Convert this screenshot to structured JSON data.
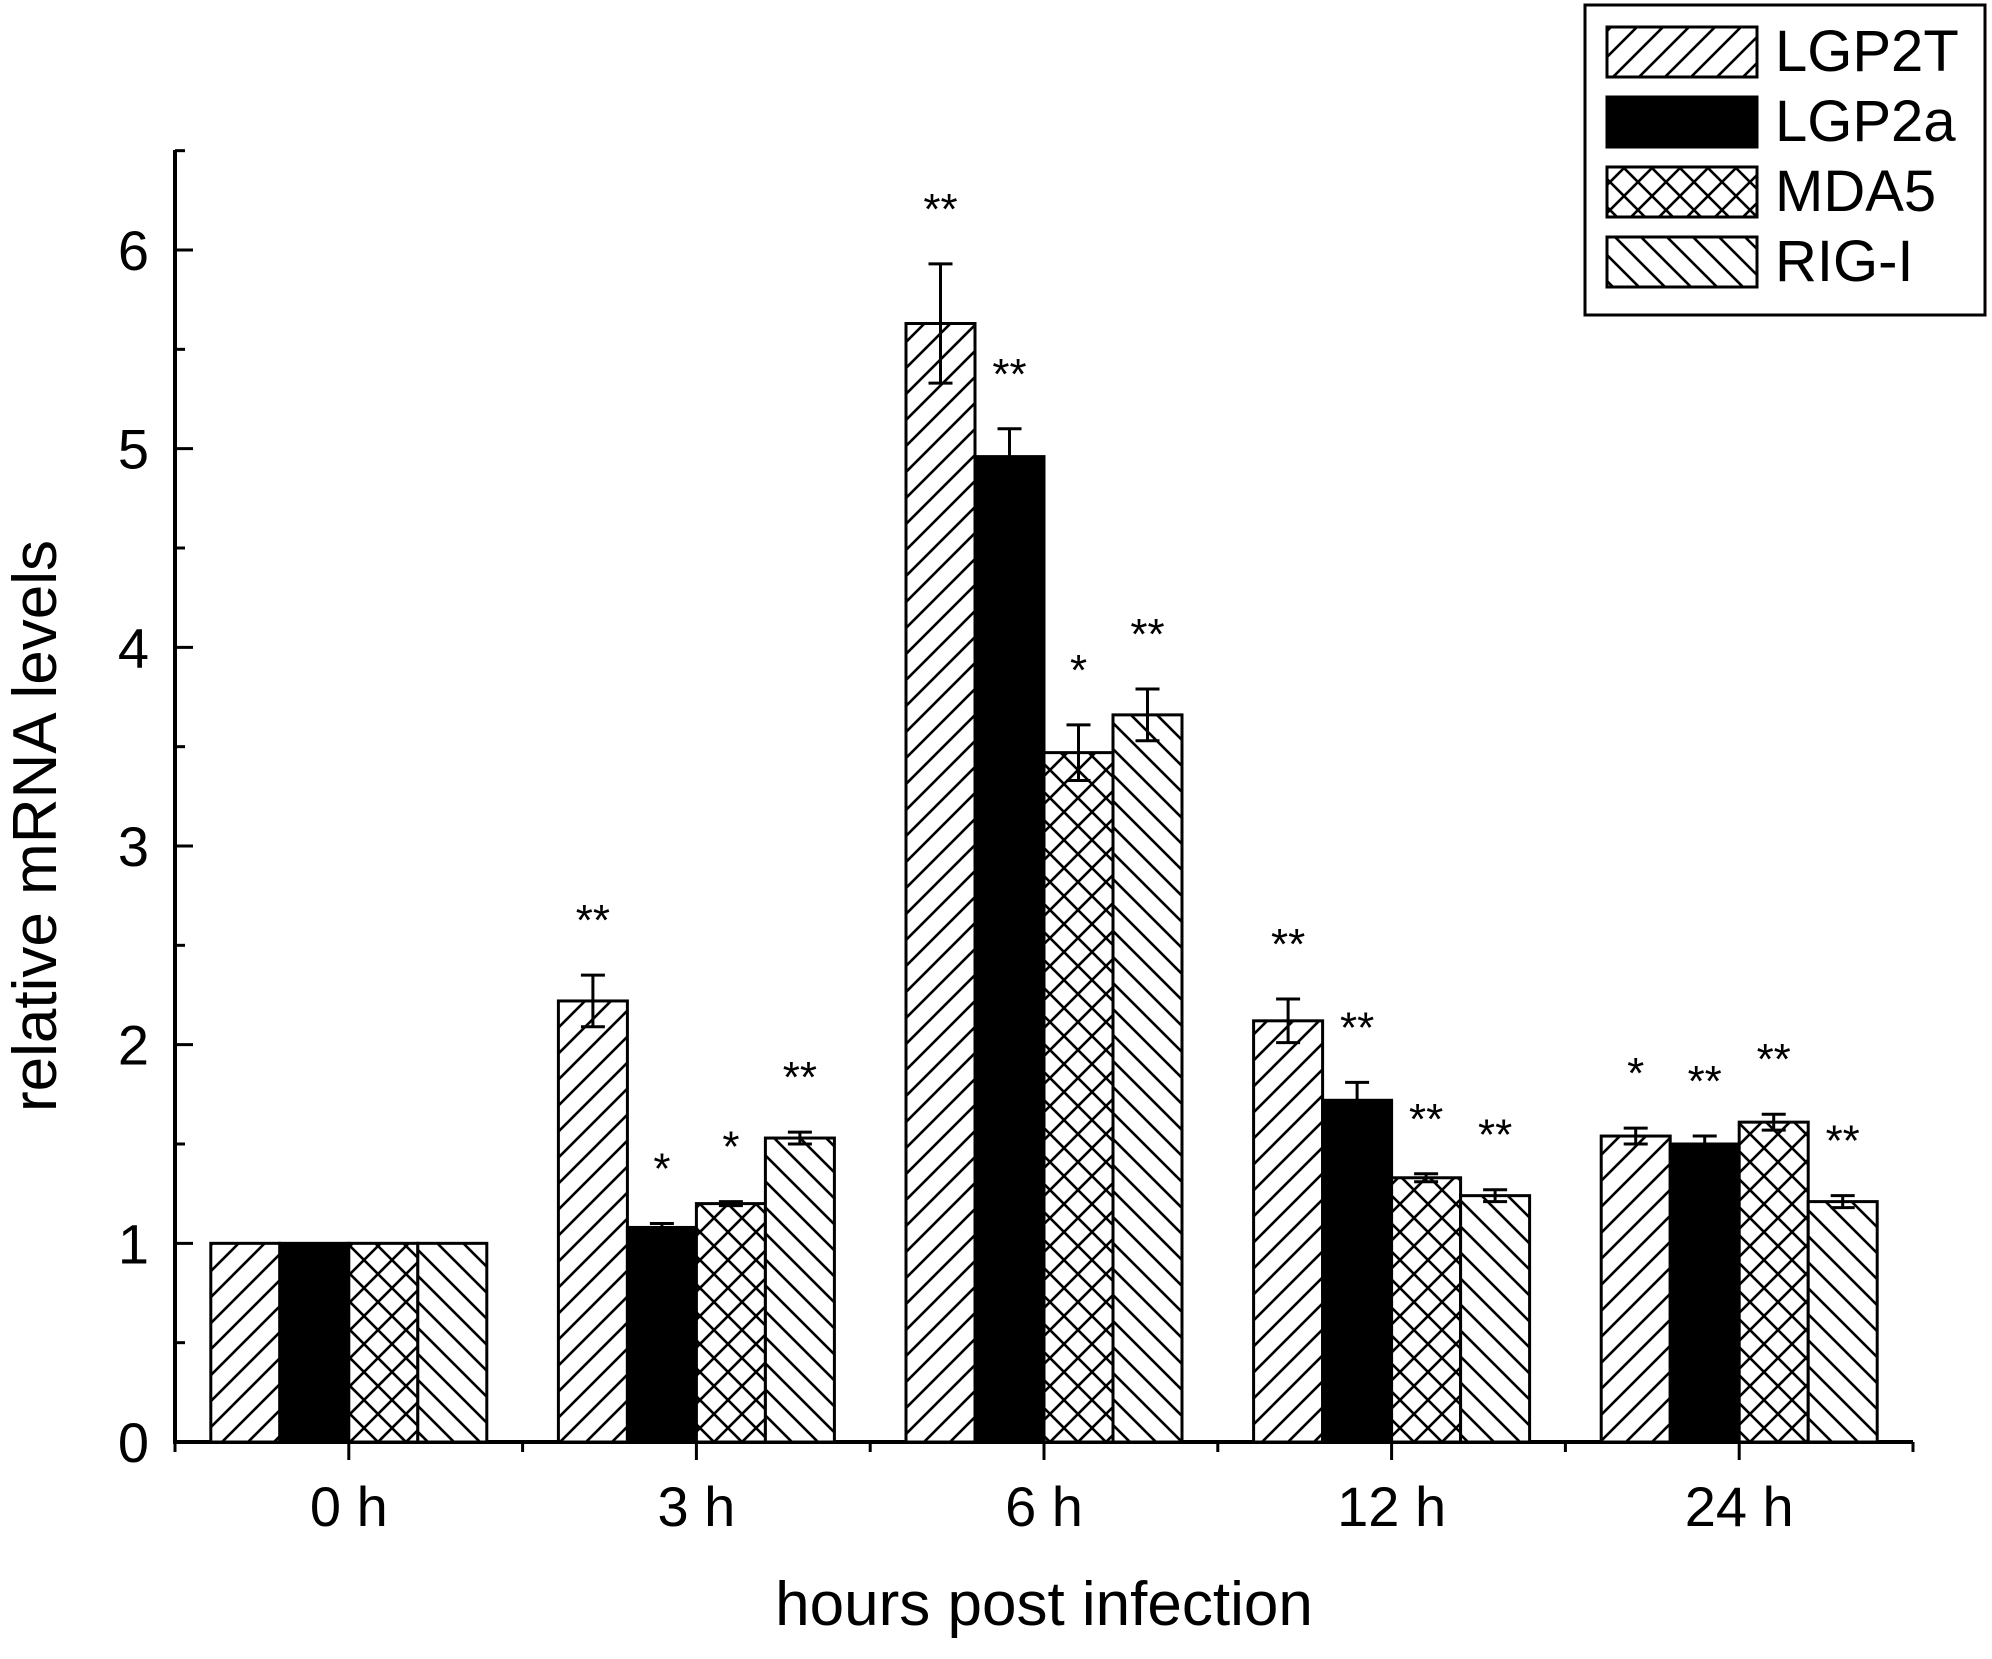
{
  "chart_data": {
    "type": "bar",
    "xlabel": "hours post infection",
    "ylabel": "relative mRNA levels",
    "ylim": [
      0,
      6.5
    ],
    "yticks": [
      "0",
      "1",
      "2",
      "3",
      "4",
      "5",
      "6"
    ],
    "categories": [
      "0 h",
      "3 h",
      "6 h",
      "12 h",
      "24 h"
    ],
    "legend_position": "top-right",
    "grid": false,
    "series": [
      {
        "name": "LGP2T",
        "pattern": "diagonal-forward",
        "values": [
          1.0,
          2.22,
          5.63,
          2.12,
          1.54
        ],
        "errors": [
          0,
          0.13,
          0.3,
          0.11,
          0.04
        ],
        "significance": [
          "",
          "**",
          "**",
          "**",
          "*"
        ]
      },
      {
        "name": "LGP2a",
        "pattern": "solid-black",
        "values": [
          1.0,
          1.08,
          4.96,
          1.72,
          1.5
        ],
        "errors": [
          0,
          0.02,
          0.14,
          0.09,
          0.04
        ],
        "significance": [
          "",
          "*",
          "**",
          "**",
          "**"
        ]
      },
      {
        "name": "MDA5",
        "pattern": "crosshatch",
        "values": [
          1.0,
          1.2,
          3.47,
          1.33,
          1.61
        ],
        "errors": [
          0,
          0.01,
          0.14,
          0.02,
          0.04
        ],
        "significance": [
          "",
          "*",
          "*",
          "**",
          "**"
        ]
      },
      {
        "name": "RIG-I",
        "pattern": "diagonal-backward",
        "values": [
          1.0,
          1.53,
          3.66,
          1.24,
          1.21
        ],
        "errors": [
          0,
          0.03,
          0.13,
          0.03,
          0.03
        ],
        "significance": [
          "",
          "**",
          "**",
          "**",
          "**"
        ]
      }
    ]
  }
}
